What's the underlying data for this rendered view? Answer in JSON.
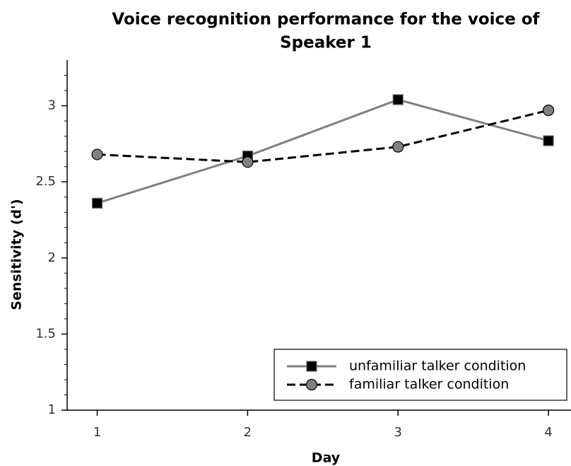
{
  "chart_data": {
    "type": "line",
    "title": [
      "Voice recognition performance for the voice of",
      "Speaker 1"
    ],
    "xlabel": "Day",
    "ylabel": "Sensitivity (d')",
    "x": [
      1,
      2,
      3,
      4
    ],
    "series": [
      {
        "name": "unfamiliar talker condition",
        "color": "#808080",
        "marker": "square",
        "marker_color": "#000000",
        "dash": "solid",
        "values": [
          2.36,
          2.67,
          3.04,
          2.77
        ]
      },
      {
        "name": "familiar talker condition",
        "color": "#000000",
        "marker": "circle",
        "marker_color": "#808080",
        "dash": "dashed",
        "values": [
          2.68,
          2.63,
          2.73,
          2.97
        ]
      }
    ],
    "xlim": [
      0.8,
      4.15
    ],
    "xticks": [
      1,
      2,
      3,
      4
    ],
    "ylim": [
      1,
      3.3
    ],
    "yticks": [
      1,
      1.5,
      2,
      2.5,
      3
    ],
    "yticks_minor": [
      1.1,
      1.2,
      1.3,
      1.4,
      1.6,
      1.7,
      1.8,
      1.9,
      2.1,
      2.2,
      2.3,
      2.4,
      2.6,
      2.7,
      2.8,
      2.9,
      3.1,
      3.2
    ],
    "legend": "lower right",
    "grid": false
  }
}
